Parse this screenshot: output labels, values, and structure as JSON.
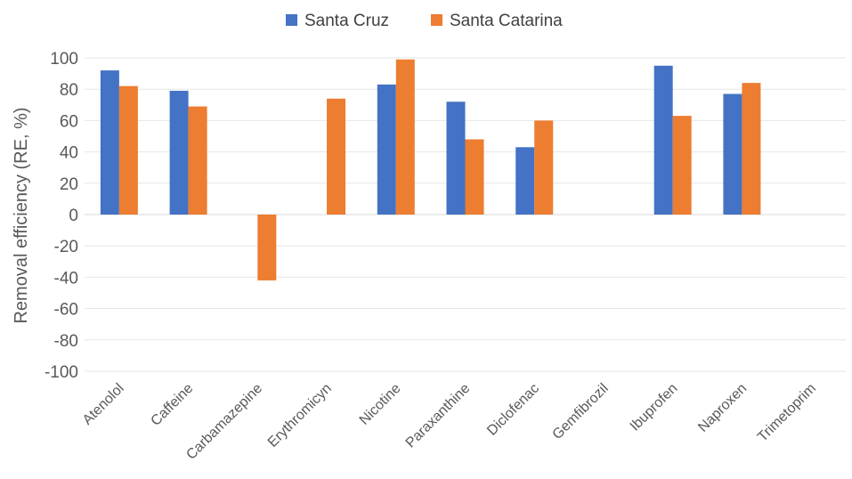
{
  "chart_data": {
    "type": "bar",
    "title": "",
    "xlabel": "",
    "ylabel": "Removal efficiency (RE, %)",
    "ylim": [
      -100,
      100
    ],
    "yticks": [
      100,
      80,
      60,
      40,
      20,
      0,
      -20,
      -40,
      -60,
      -80,
      -100
    ],
    "grid": true,
    "legend_position": "top",
    "categories": [
      "Atenolol",
      "Caffeine",
      "Carbamazepine",
      "Erythromicyn",
      "Nicotine",
      "Paraxanthine",
      "Diclofenac",
      "Gemfibrozil",
      "Ibuprofen",
      "Naproxen",
      "Trimetoprim"
    ],
    "series": [
      {
        "name": "Santa Cruz",
        "color": "#4472C4",
        "values": [
          92,
          79,
          null,
          null,
          83,
          72,
          43,
          null,
          95,
          77,
          null
        ]
      },
      {
        "name": "Santa Catarina",
        "color": "#ED7D31",
        "values": [
          82,
          69,
          -42,
          74,
          99,
          48,
          60,
          null,
          63,
          84,
          null
        ]
      }
    ]
  }
}
